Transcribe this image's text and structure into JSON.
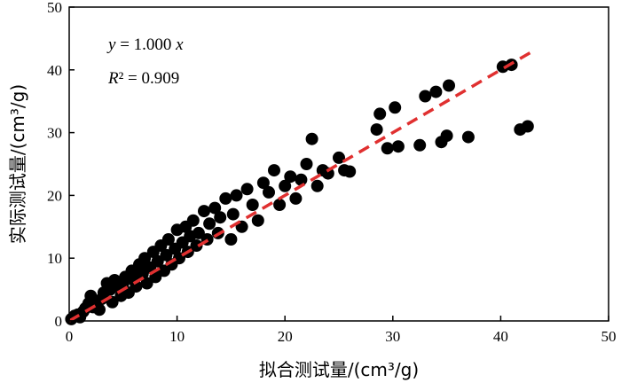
{
  "chart_data": {
    "type": "scatter",
    "xlabel": "拟合测试量/(cm³/g)",
    "ylabel": "实际测试量/(cm³/g)",
    "xlim": [
      0,
      50
    ],
    "ylim": [
      0,
      50
    ],
    "xticks": [
      "0",
      "10",
      "20",
      "30",
      "40",
      "50"
    ],
    "yticks": [
      "0",
      "10",
      "20",
      "30",
      "40",
      "50"
    ],
    "grid": false,
    "legend": "none",
    "annotation": {
      "equation": "y = 1.000 x",
      "r_squared": "R² = 0.909"
    },
    "fit_line": {
      "slope": 1.0,
      "intercept": 0.0,
      "x_range": [
        0,
        43
      ],
      "color": "#e03030",
      "style": "dashed"
    },
    "marker_color": "#000000",
    "series": [
      {
        "points": [
          [
            0.2,
            0.3
          ],
          [
            0.5,
            0.8
          ],
          [
            0.8,
            1.0
          ],
          [
            1.0,
            0.6
          ],
          [
            1.3,
            1.5
          ],
          [
            1.5,
            2.0
          ],
          [
            1.8,
            2.8
          ],
          [
            2.0,
            4.0
          ],
          [
            2.2,
            2.2
          ],
          [
            2.5,
            3.0
          ],
          [
            2.8,
            1.8
          ],
          [
            3.0,
            3.5
          ],
          [
            3.2,
            4.5
          ],
          [
            3.5,
            6.0
          ],
          [
            3.8,
            5.0
          ],
          [
            4.0,
            3.0
          ],
          [
            4.2,
            6.5
          ],
          [
            4.5,
            5.5
          ],
          [
            4.8,
            4.0
          ],
          [
            5.0,
            6.0
          ],
          [
            5.2,
            7.0
          ],
          [
            5.5,
            4.5
          ],
          [
            5.8,
            8.0
          ],
          [
            6.0,
            6.5
          ],
          [
            6.2,
            5.5
          ],
          [
            6.5,
            9.0
          ],
          [
            6.8,
            7.5
          ],
          [
            7.0,
            10.0
          ],
          [
            7.2,
            6.0
          ],
          [
            7.5,
            8.5
          ],
          [
            7.8,
            11.0
          ],
          [
            8.0,
            7.0
          ],
          [
            8.2,
            9.5
          ],
          [
            8.5,
            12.0
          ],
          [
            8.8,
            8.0
          ],
          [
            9.0,
            10.5
          ],
          [
            9.2,
            13.0
          ],
          [
            9.5,
            9.0
          ],
          [
            9.8,
            11.5
          ],
          [
            10.0,
            14.5
          ],
          [
            10.2,
            10.0
          ],
          [
            10.5,
            12.5
          ],
          [
            10.8,
            15.0
          ],
          [
            11.0,
            11.0
          ],
          [
            11.2,
            13.5
          ],
          [
            11.5,
            16.0
          ],
          [
            11.8,
            12.0
          ],
          [
            12.0,
            14.0
          ],
          [
            12.5,
            17.5
          ],
          [
            12.8,
            13.0
          ],
          [
            13.0,
            15.5
          ],
          [
            13.5,
            18.0
          ],
          [
            13.8,
            14.0
          ],
          [
            14.0,
            16.5
          ],
          [
            14.5,
            19.5
          ],
          [
            15.0,
            13.0
          ],
          [
            15.2,
            17.0
          ],
          [
            15.5,
            20.0
          ],
          [
            16.0,
            15.0
          ],
          [
            16.5,
            21.0
          ],
          [
            17.0,
            18.5
          ],
          [
            17.5,
            16.0
          ],
          [
            18.0,
            22.0
          ],
          [
            18.5,
            20.5
          ],
          [
            19.0,
            24.0
          ],
          [
            19.5,
            18.5
          ],
          [
            20.0,
            21.5
          ],
          [
            20.5,
            23.0
          ],
          [
            21.0,
            19.5
          ],
          [
            21.5,
            22.5
          ],
          [
            22.0,
            25.0
          ],
          [
            22.5,
            29.0
          ],
          [
            23.0,
            21.5
          ],
          [
            23.5,
            24.0
          ],
          [
            24.0,
            23.5
          ],
          [
            25.0,
            26.0
          ],
          [
            25.5,
            24.0
          ],
          [
            26.0,
            23.8
          ],
          [
            28.5,
            30.5
          ],
          [
            28.8,
            33.0
          ],
          [
            29.5,
            27.5
          ],
          [
            30.2,
            34.0
          ],
          [
            30.5,
            27.8
          ],
          [
            32.5,
            28.0
          ],
          [
            33.0,
            35.8
          ],
          [
            34.0,
            36.5
          ],
          [
            34.5,
            28.5
          ],
          [
            35.0,
            29.5
          ],
          [
            35.2,
            37.5
          ],
          [
            37.0,
            29.3
          ],
          [
            40.2,
            40.5
          ],
          [
            41.0,
            40.8
          ],
          [
            41.8,
            30.5
          ],
          [
            42.5,
            31.0
          ]
        ]
      }
    ]
  }
}
